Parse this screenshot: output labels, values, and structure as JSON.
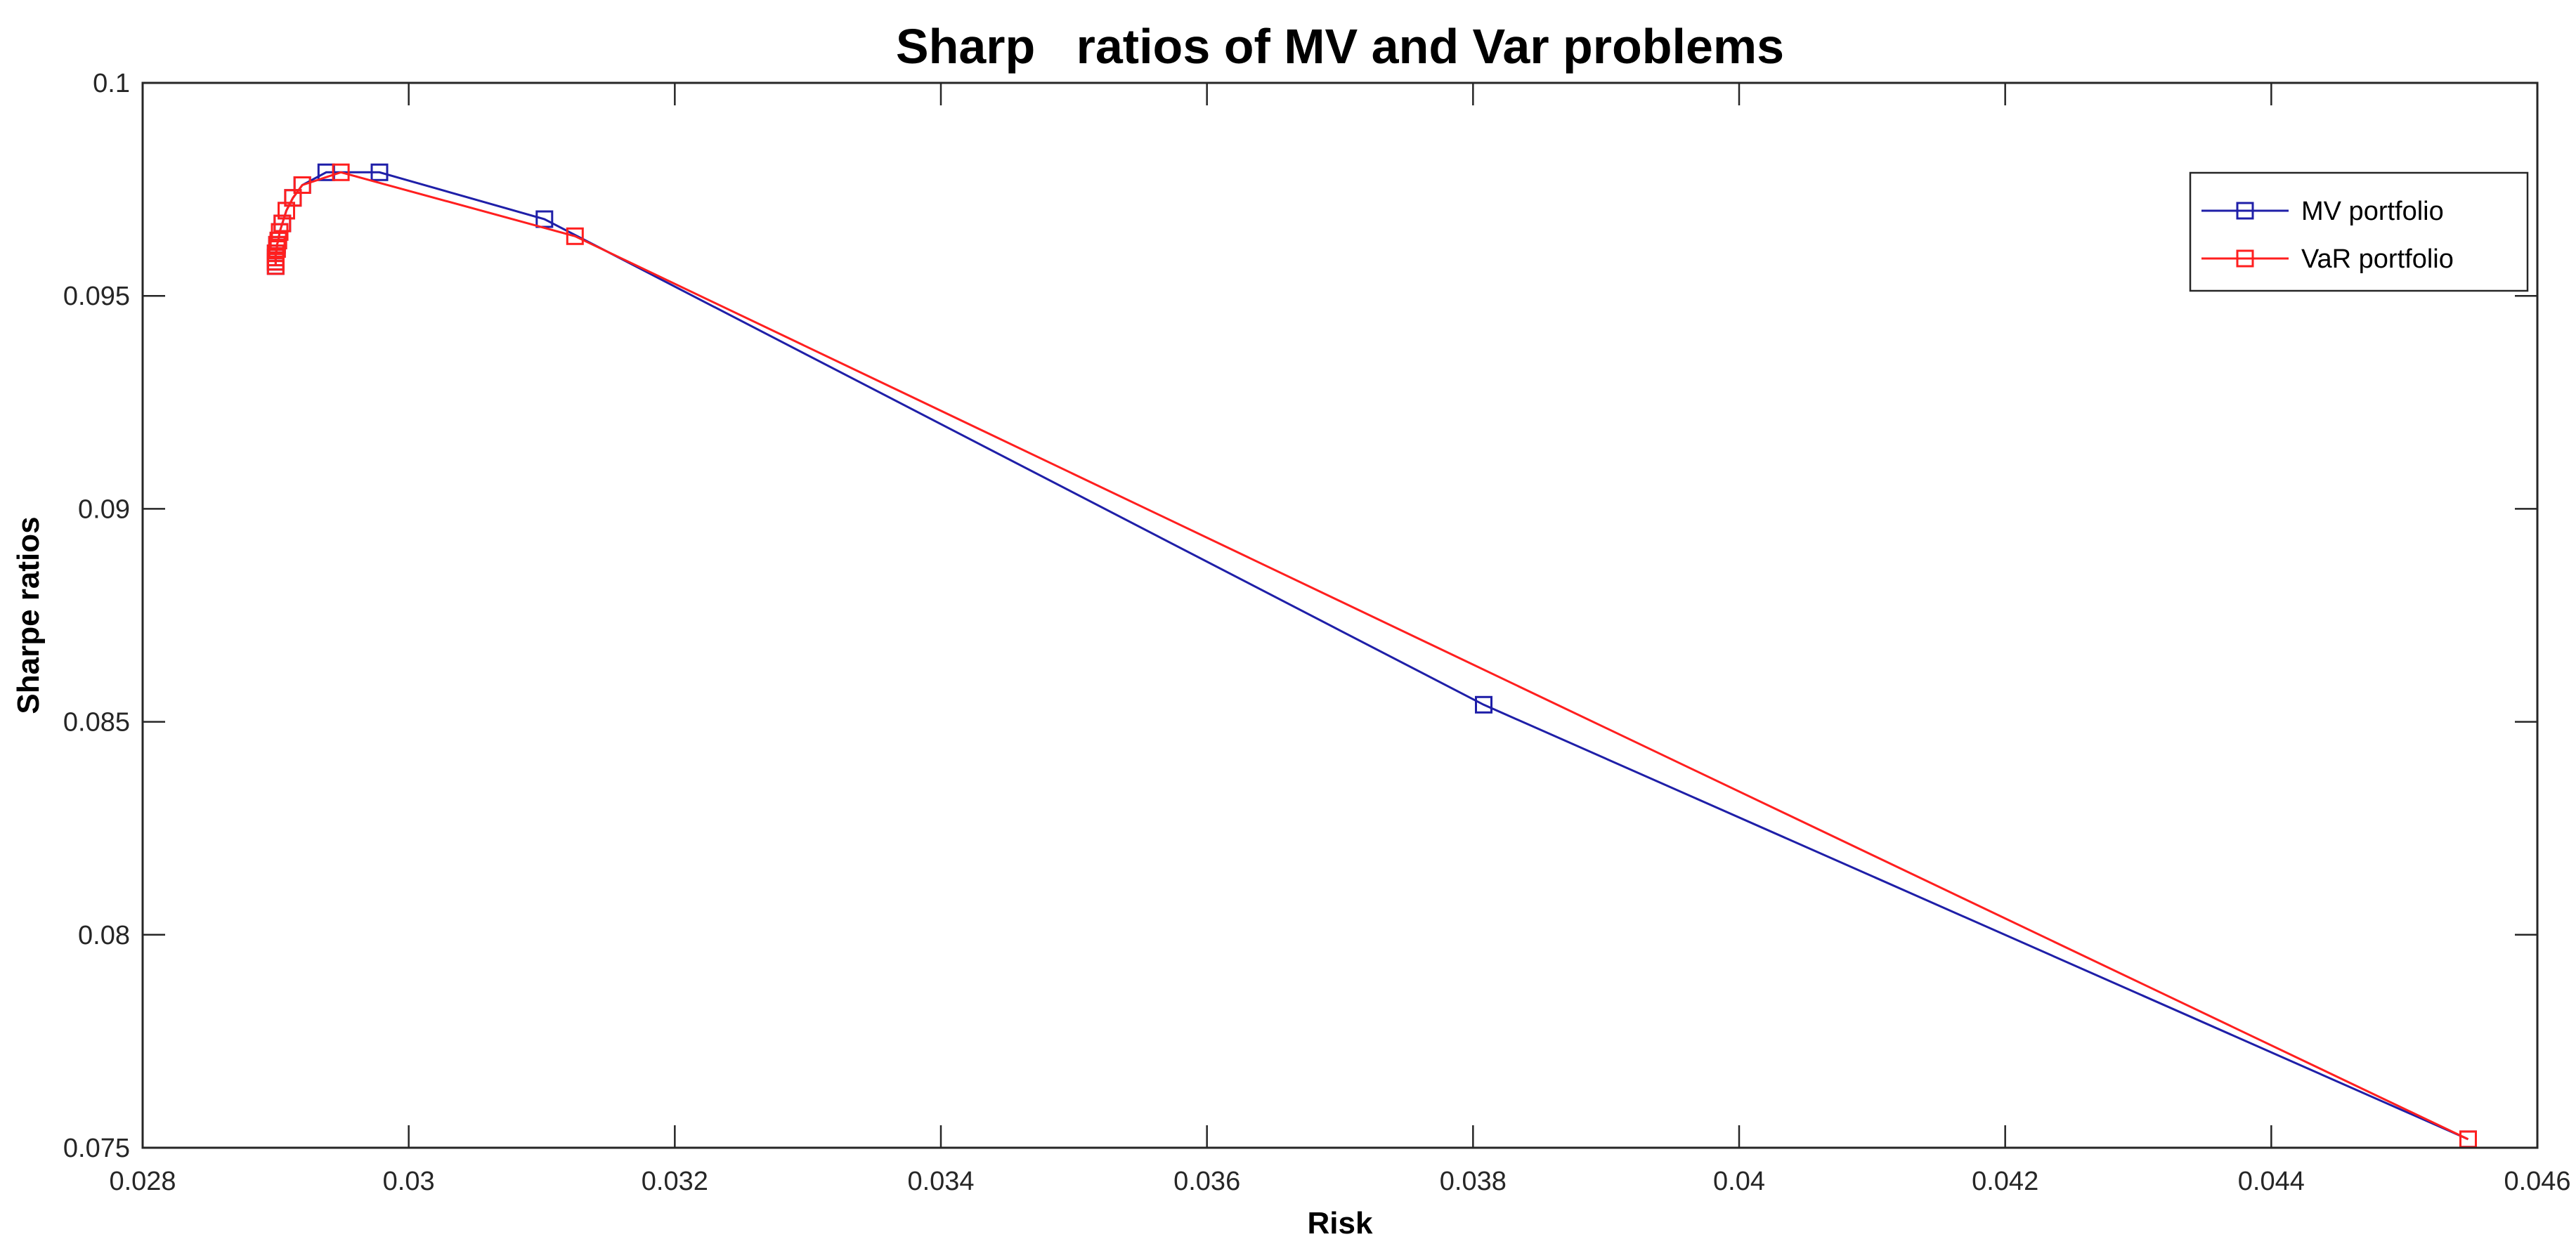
{
  "chart_data": {
    "type": "line",
    "title": "Sharp   ratios of MV and Var problems",
    "xlabel": "Risk",
    "ylabel": "Sharpe ratios",
    "xlim": [
      0.028,
      0.046
    ],
    "ylim": [
      0.075,
      0.1
    ],
    "xticks": [
      0.028,
      0.03,
      0.032,
      0.034,
      0.036,
      0.038,
      0.04,
      0.042,
      0.044,
      0.046
    ],
    "xtick_labels": [
      "0.028",
      "0.03",
      "0.032",
      "0.034",
      "0.036",
      "0.038",
      "0.04",
      "0.042",
      "0.044",
      "0.046"
    ],
    "yticks": [
      0.075,
      0.08,
      0.085,
      0.09,
      0.095,
      0.1
    ],
    "ytick_labels": [
      "0.075",
      "0.08",
      "0.085",
      "0.09",
      "0.095",
      "0.1"
    ],
    "grid": false,
    "box": true,
    "legend_position": "top-right",
    "marker": "square",
    "series": [
      {
        "name": "MV portfolio",
        "color": "#1f1fa8",
        "points": [
          [
            0.029,
            0.0957
          ],
          [
            0.029,
            0.0958
          ],
          [
            0.029,
            0.0959
          ],
          [
            0.029,
            0.096
          ],
          [
            0.02901,
            0.0961
          ],
          [
            0.02901,
            0.0962
          ],
          [
            0.02902,
            0.0963
          ],
          [
            0.02903,
            0.0965
          ],
          [
            0.02905,
            0.0967
          ],
          [
            0.02908,
            0.097
          ],
          [
            0.02913,
            0.0973
          ],
          [
            0.0292,
            0.0976
          ],
          [
            0.02938,
            0.0979
          ],
          [
            0.02978,
            0.0979
          ],
          [
            0.03102,
            0.0968
          ],
          [
            0.03808,
            0.0854
          ],
          [
            0.04548,
            0.0752
          ]
        ]
      },
      {
        "name": "VaR portfolio",
        "color": "#ff1f1f",
        "points": [
          [
            0.029,
            0.0957
          ],
          [
            0.029,
            0.0958
          ],
          [
            0.029,
            0.0959
          ],
          [
            0.029,
            0.096
          ],
          [
            0.02901,
            0.0961
          ],
          [
            0.02901,
            0.0962
          ],
          [
            0.02902,
            0.0963
          ],
          [
            0.02903,
            0.0965
          ],
          [
            0.02905,
            0.0967
          ],
          [
            0.02908,
            0.097
          ],
          [
            0.02913,
            0.0973
          ],
          [
            0.0292,
            0.0976
          ],
          [
            0.02949,
            0.0979
          ],
          [
            0.03125,
            0.0964
          ],
          [
            0.04548,
            0.0752
          ]
        ]
      }
    ]
  }
}
